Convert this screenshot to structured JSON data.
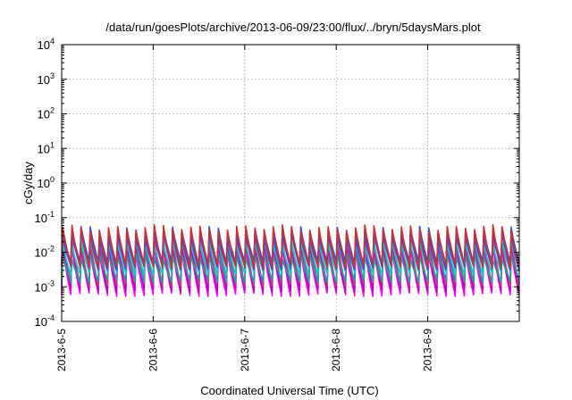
{
  "chart_data": {
    "type": "line",
    "title": "/data/run/goesPlots/archive/2013-06-09/23:00/flux/../bryn/5daysMars.plot",
    "xlabel": "Coordinated Universal Time (UTC)",
    "ylabel": "cGy/day",
    "yscale": "log",
    "ylim": [
      0.0001,
      10000
    ],
    "xlim": [
      "2013-06-05",
      "2013-06-10"
    ],
    "grid": true,
    "x_ticks": [
      "2013-6-5",
      "2013-6-6",
      "2013-6-7",
      "2013-6-8",
      "2013-6-9"
    ],
    "y_ticks": [
      {
        "value": 0.0001,
        "base": "10",
        "exp": "-4"
      },
      {
        "value": 0.001,
        "base": "10",
        "exp": "-3"
      },
      {
        "value": 0.01,
        "base": "10",
        "exp": "-2"
      },
      {
        "value": 0.1,
        "base": "10",
        "exp": "-1"
      },
      {
        "value": 1,
        "base": "10",
        "exp": "0"
      },
      {
        "value": 10,
        "base": "10",
        "exp": "1"
      },
      {
        "value": 100,
        "base": "10",
        "exp": "2"
      },
      {
        "value": 1000,
        "base": "10",
        "exp": "3"
      },
      {
        "value": 10000,
        "base": "10",
        "exp": "4"
      }
    ],
    "cycle_days": 0.1,
    "series": [
      {
        "color": "#ff00ff",
        "peak": 0.012,
        "trough": 0.0006
      },
      {
        "color": "#c000c0",
        "peak": 0.018,
        "trough": 0.0008
      },
      {
        "color": "#c04080",
        "peak": 0.025,
        "trough": 0.0012
      },
      {
        "color": "#20a0a0",
        "peak": 0.008,
        "trough": 0.0015
      },
      {
        "color": "#00d0d0",
        "peak": 0.02,
        "trough": 0.0025
      },
      {
        "color": "#3050e0",
        "peak": 0.045,
        "trough": 0.005
      },
      {
        "color": "#6040c0",
        "peak": 0.03,
        "trough": 0.0035
      },
      {
        "color": "#d03030",
        "peak": 0.05,
        "trough": 0.004
      }
    ]
  }
}
